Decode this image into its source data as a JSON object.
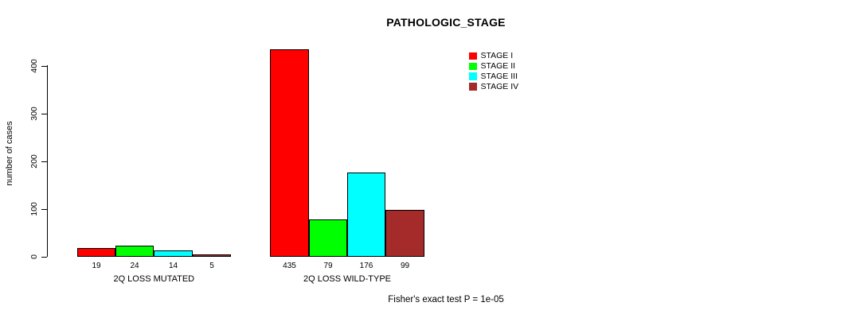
{
  "chart_data": {
    "type": "bar",
    "title": "PATHOLOGIC_STAGE",
    "ylabel": "number of cases",
    "ylim": [
      0,
      435
    ],
    "y_ticks": [
      0,
      100,
      200,
      300,
      400
    ],
    "grid": false,
    "legend_position": "top-right",
    "categories": [
      "2Q LOSS MUTATED",
      "2Q LOSS WILD-TYPE"
    ],
    "series": [
      {
        "name": "STAGE I",
        "color": "#FF0000",
        "values": [
          19,
          435
        ]
      },
      {
        "name": "STAGE II",
        "color": "#00FF00",
        "values": [
          24,
          79
        ]
      },
      {
        "name": "STAGE III",
        "color": "#00FFFF",
        "values": [
          14,
          176
        ]
      },
      {
        "name": "STAGE IV",
        "color": "#A52A2A",
        "values": [
          5,
          99
        ]
      }
    ],
    "bar_value_labels": [
      [
        "19",
        "24",
        "14",
        "5"
      ],
      [
        "435",
        "79",
        "176",
        "99"
      ]
    ],
    "annotation": "Fisher's exact test P = 1e-05"
  }
}
